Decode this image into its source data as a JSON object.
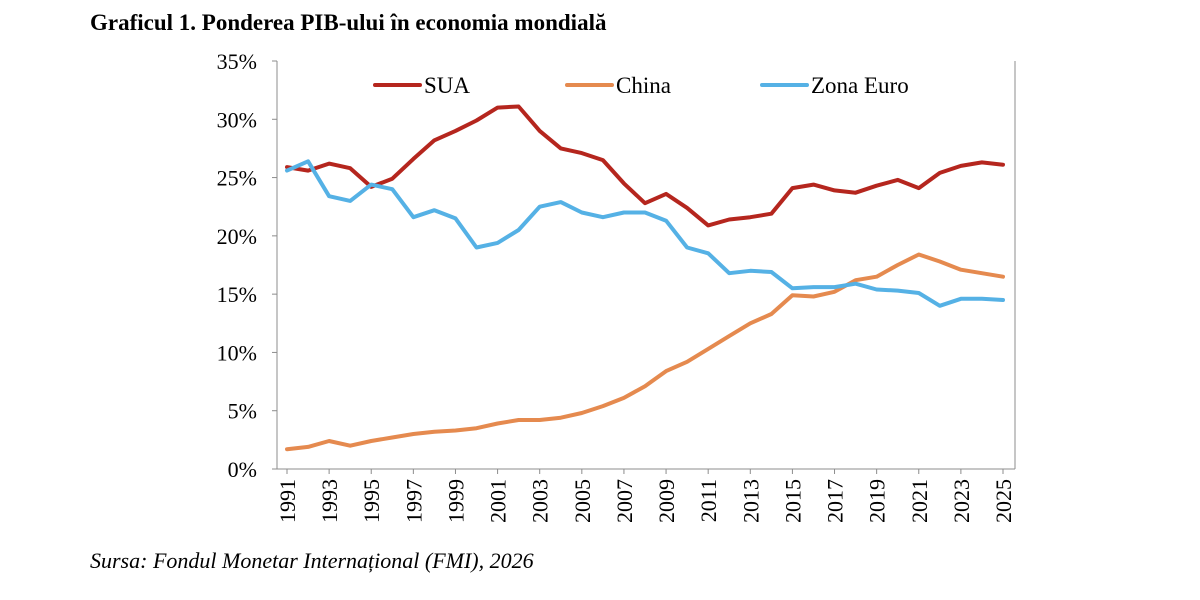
{
  "chart_data": {
    "type": "line",
    "title": "Graficul 1. Ponderea PIB-ului în economia mondială",
    "source": "Sursa: Fondul Monetar Internațional (FMI), 2026",
    "xlabel": "",
    "ylabel": "",
    "ylim": [
      0,
      35
    ],
    "y_ticks": [
      "0%",
      "5%",
      "10%",
      "15%",
      "20%",
      "25%",
      "30%",
      "35%"
    ],
    "x": [
      1991,
      1992,
      1993,
      1994,
      1995,
      1996,
      1997,
      1998,
      1999,
      2000,
      2001,
      2002,
      2003,
      2004,
      2005,
      2006,
      2007,
      2008,
      2009,
      2010,
      2011,
      2012,
      2013,
      2014,
      2015,
      2016,
      2017,
      2018,
      2019,
      2020,
      2021,
      2022,
      2023,
      2024,
      2025
    ],
    "x_tick_labels": [
      "1991",
      "1993",
      "1995",
      "1997",
      "1999",
      "2001",
      "2003",
      "2005",
      "2007",
      "2009",
      "2011",
      "2013",
      "2015",
      "2017",
      "2019",
      "2021",
      "2023",
      "2025"
    ],
    "grid": false,
    "legend_position": "top",
    "series": [
      {
        "name": "SUA",
        "color": "#b5261e",
        "values": [
          25.9,
          25.6,
          26.2,
          25.8,
          24.2,
          24.9,
          26.6,
          28.2,
          29.0,
          29.9,
          31.0,
          31.1,
          29.0,
          27.5,
          27.1,
          26.5,
          24.5,
          22.8,
          23.6,
          22.4,
          20.9,
          21.4,
          21.6,
          21.9,
          24.1,
          24.4,
          23.9,
          23.7,
          24.3,
          24.8,
          24.1,
          25.4,
          26.0,
          26.3,
          26.1
        ]
      },
      {
        "name": "China",
        "color": "#e58a4f",
        "values": [
          1.7,
          1.9,
          2.4,
          2.0,
          2.4,
          2.7,
          3.0,
          3.2,
          3.3,
          3.5,
          3.9,
          4.2,
          4.2,
          4.4,
          4.8,
          5.4,
          6.1,
          7.1,
          8.4,
          9.2,
          10.3,
          11.4,
          12.5,
          13.3,
          14.9,
          14.8,
          15.2,
          16.2,
          16.5,
          17.5,
          18.4,
          17.8,
          17.1,
          16.8,
          16.5
        ]
      },
      {
        "name": "Zona Euro",
        "color": "#55b1e5",
        "values": [
          25.6,
          26.4,
          23.4,
          23.0,
          24.4,
          24.0,
          21.6,
          22.2,
          21.5,
          19.0,
          19.4,
          20.5,
          22.5,
          22.9,
          22.0,
          21.6,
          22.0,
          22.0,
          21.3,
          19.0,
          18.5,
          16.8,
          17.0,
          16.9,
          15.5,
          15.6,
          15.6,
          15.9,
          15.4,
          15.3,
          15.1,
          14.0,
          14.6,
          14.6,
          14.5
        ]
      }
    ]
  }
}
